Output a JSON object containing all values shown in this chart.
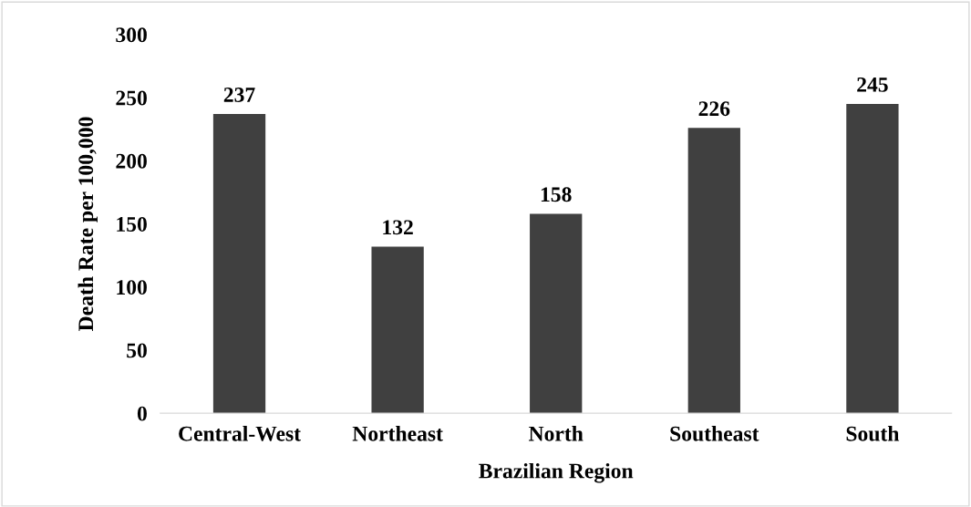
{
  "chart_data": {
    "type": "bar",
    "xlabel": "Brazilian Region",
    "ylabel": "Death Rate per 100,000",
    "categories": [
      "Central-West",
      "Northeast",
      "North",
      "Southeast",
      "South"
    ],
    "values": [
      237,
      132,
      158,
      226,
      245
    ],
    "color": "#404040",
    "ylim": [
      0,
      300
    ],
    "yticks": [
      0,
      50,
      100,
      150,
      200,
      250,
      300
    ],
    "grid": false,
    "data_labels": true
  }
}
